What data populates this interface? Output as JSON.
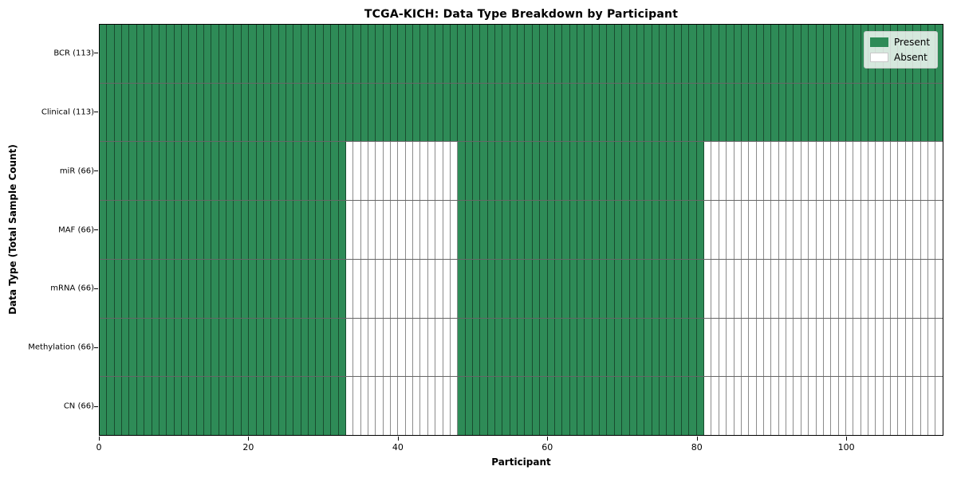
{
  "chart_data": {
    "type": "heatmap",
    "title": "TCGA-KICH: Data Type Breakdown by Participant",
    "xlabel": "Participant",
    "ylabel": "Data Type (Total Sample Count)",
    "n_participants": 113,
    "x_range": [
      0,
      113
    ],
    "x_ticks": [
      0,
      20,
      40,
      60,
      80,
      100
    ],
    "grid": true,
    "legend_position": "upper right",
    "rows": [
      {
        "label": "BCR (113)",
        "data_type": "BCR",
        "total": 113,
        "present_segments": [
          [
            0,
            113
          ]
        ]
      },
      {
        "label": "Clinical (113)",
        "data_type": "Clinical",
        "total": 113,
        "present_segments": [
          [
            0,
            113
          ]
        ]
      },
      {
        "label": "miR (66)",
        "data_type": "miR",
        "total": 66,
        "present_segments": [
          [
            0,
            33
          ],
          [
            48,
            81
          ]
        ]
      },
      {
        "label": "MAF (66)",
        "data_type": "MAF",
        "total": 66,
        "present_segments": [
          [
            0,
            33
          ],
          [
            48,
            81
          ]
        ]
      },
      {
        "label": "mRNA (66)",
        "data_type": "mRNA",
        "total": 66,
        "present_segments": [
          [
            0,
            33
          ],
          [
            48,
            81
          ]
        ]
      },
      {
        "label": "Methylation (66)",
        "data_type": "Methylation",
        "total": 66,
        "present_segments": [
          [
            0,
            33
          ],
          [
            48,
            81
          ]
        ]
      },
      {
        "label": "CN (66)",
        "data_type": "CN",
        "total": 66,
        "present_segments": [
          [
            0,
            33
          ],
          [
            48,
            81
          ]
        ]
      }
    ],
    "legend": [
      {
        "label": "Present",
        "color": "#2e8b57"
      },
      {
        "label": "Absent",
        "color": "#ffffff"
      }
    ],
    "colors": {
      "present": "#2e8b57",
      "absent": "#ffffff",
      "cell_edge": "rgba(0,0,0,0.45)",
      "row_separator": "rgba(0,0,0,0.6)",
      "frame": "#000000",
      "background": "#ffffff"
    }
  }
}
